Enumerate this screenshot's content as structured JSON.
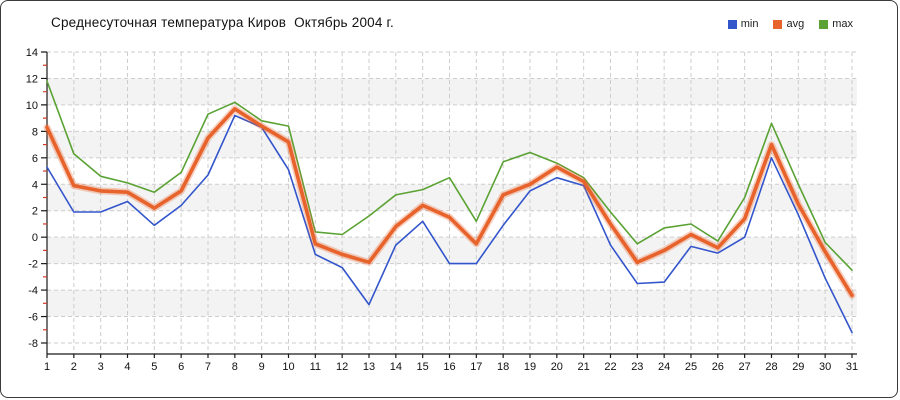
{
  "title": "Среднесуточная температура Киров  Октябрь 2004 г.",
  "legend": [
    "min",
    "avg",
    "max"
  ],
  "colors": {
    "min": "#3355cc",
    "avg": "#e8622b",
    "avg_halo": "rgba(232,98,43,0.30)",
    "max": "#5aa233",
    "band": "#f3f3f3",
    "grid": "#cdcdcd",
    "axis": "#1a1a1a",
    "minor_tick": "#d23b2a",
    "text": "#111111"
  },
  "chart_data": {
    "type": "line",
    "title": "Среднесуточная температура Киров  Октябрь 2004 г.",
    "xlabel": "",
    "ylabel": "",
    "x": [
      1,
      2,
      3,
      4,
      5,
      6,
      7,
      8,
      9,
      10,
      11,
      12,
      13,
      14,
      15,
      16,
      17,
      18,
      19,
      20,
      21,
      22,
      23,
      24,
      25,
      26,
      27,
      28,
      29,
      30,
      31
    ],
    "ylim": [
      -8,
      14
    ],
    "ytick_step": 2,
    "grid": true,
    "legend_position": "top-right",
    "series": [
      {
        "name": "min",
        "color": "#3355cc",
        "values": [
          5.3,
          1.9,
          1.9,
          2.7,
          0.9,
          2.4,
          4.7,
          9.2,
          8.3,
          5.1,
          -1.3,
          -2.3,
          -5.1,
          -0.6,
          1.2,
          -2.0,
          -2.0,
          0.9,
          3.5,
          4.5,
          3.9,
          -0.6,
          -3.5,
          -3.4,
          -0.7,
          -1.2,
          0.0,
          6.0,
          1.7,
          -3.1,
          -7.2
        ]
      },
      {
        "name": "avg",
        "color": "#e8622b",
        "values": [
          8.3,
          3.9,
          3.5,
          3.4,
          2.2,
          3.5,
          7.5,
          9.7,
          8.4,
          7.2,
          -0.5,
          -1.3,
          -1.9,
          0.8,
          2.4,
          1.5,
          -0.5,
          3.2,
          4.0,
          5.3,
          4.2,
          1.0,
          -1.9,
          -1.0,
          0.2,
          -0.8,
          1.4,
          7.0,
          2.5,
          -1.1,
          -4.4
        ]
      },
      {
        "name": "max",
        "color": "#5aa233",
        "values": [
          11.8,
          6.3,
          4.6,
          4.1,
          3.4,
          4.9,
          9.3,
          10.2,
          8.8,
          8.4,
          0.4,
          0.2,
          1.6,
          3.2,
          3.6,
          4.5,
          1.2,
          5.7,
          6.4,
          5.6,
          4.5,
          1.9,
          -0.5,
          0.7,
          1.0,
          -0.3,
          3.0,
          8.6,
          4.0,
          -0.4,
          -2.5
        ]
      }
    ]
  }
}
